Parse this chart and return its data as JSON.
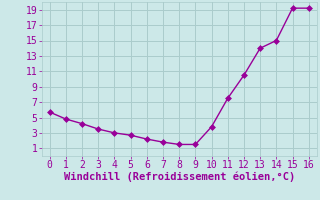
{
  "x": [
    0,
    1,
    2,
    3,
    4,
    5,
    6,
    7,
    8,
    9,
    10,
    11,
    12,
    13,
    14,
    15,
    16
  ],
  "y": [
    5.7,
    4.8,
    4.2,
    3.5,
    3.0,
    2.7,
    2.2,
    1.8,
    1.5,
    1.5,
    3.8,
    7.5,
    10.5,
    14.0,
    15.0,
    19.2,
    19.2
  ],
  "line_color": "#990099",
  "marker": "D",
  "marker_size": 3,
  "line_width": 1.0,
  "background_color": "#cce8e8",
  "grid_color": "#aacccc",
  "xlabel": "Windchill (Refroidissement éolien,°C)",
  "xlabel_color": "#990099",
  "xlabel_fontsize": 7.5,
  "tick_color": "#990099",
  "tick_fontsize": 7,
  "xlim": [
    -0.5,
    16.5
  ],
  "ylim": [
    0,
    20
  ],
  "xticks": [
    0,
    1,
    2,
    3,
    4,
    5,
    6,
    7,
    8,
    9,
    10,
    11,
    12,
    13,
    14,
    15,
    16
  ],
  "yticks": [
    1,
    3,
    5,
    7,
    9,
    11,
    13,
    15,
    17,
    19
  ]
}
